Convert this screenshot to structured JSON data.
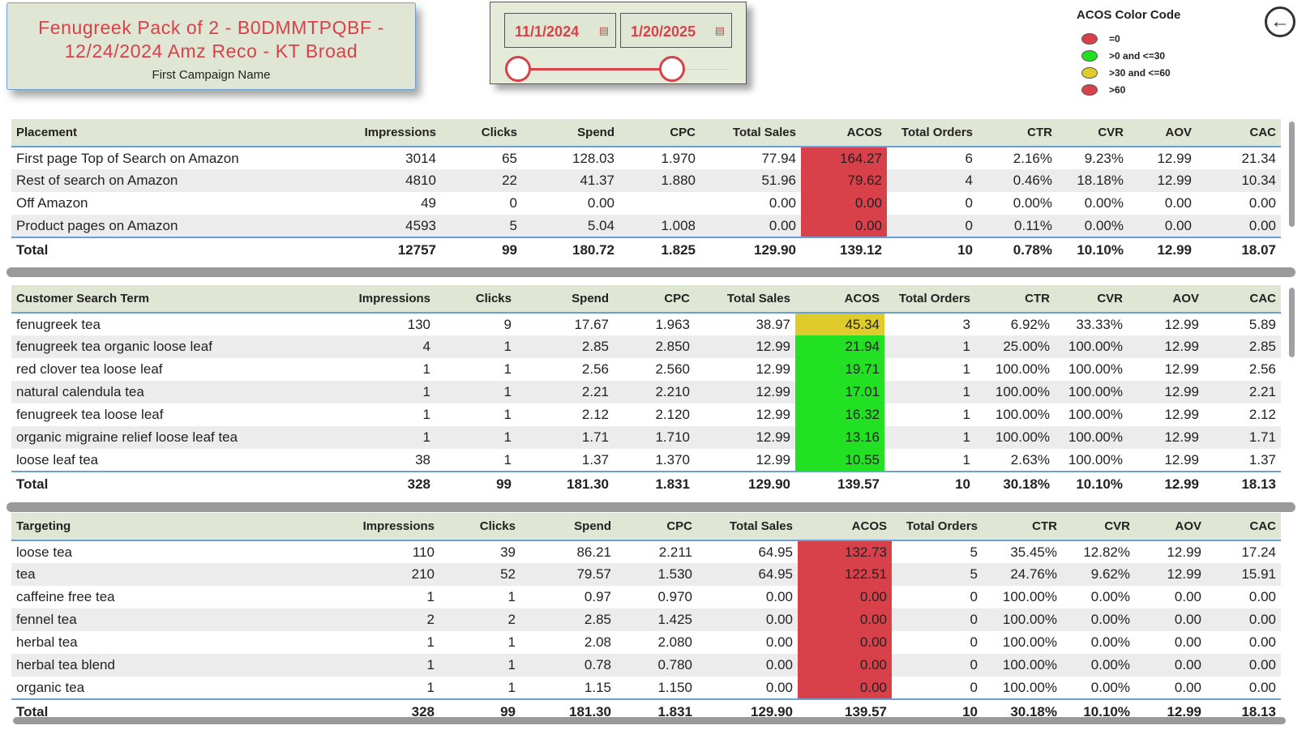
{
  "title": {
    "line1": "Fenugreek Pack of 2 - B0DMMTPQBF -",
    "line2": "12/24/2024 Amz Reco - KT Broad",
    "subtitle": "First Campaign Name"
  },
  "date_range": {
    "start": "11/1/2024",
    "end": "1/20/2025",
    "calendar_icon": "calendar-icon"
  },
  "legend": {
    "title": "ACOS Color Code",
    "items": [
      {
        "label": "=0",
        "color": "#d9414a"
      },
      {
        "label": ">0 and <=30",
        "color": "#22e022"
      },
      {
        "label": ">30 and <=60",
        "color": "#e0cb2c"
      },
      {
        "label": ">60",
        "color": "#d9414a"
      }
    ]
  },
  "back_icon": "←",
  "colors": {
    "red": "#d9414a",
    "green": "#22e022",
    "yellow": "#e0cb2c",
    "header_bg": "#dfe6d3",
    "accent_blue": "#6aa0d6"
  },
  "columns": [
    "Impressions",
    "Clicks",
    "Spend",
    "CPC",
    "Total Sales",
    "ACOS",
    "Total Orders",
    "CTR",
    "CVR",
    "AOV",
    "CAC"
  ],
  "placement": {
    "header": "Placement",
    "rows": [
      {
        "name": "First page Top of Search on Amazon",
        "cells": [
          "3014",
          "65",
          "128.03",
          "1.970",
          "77.94",
          "164.27",
          "6",
          "2.16%",
          "9.23%",
          "12.99",
          "21.34"
        ],
        "acos_color": "red"
      },
      {
        "name": "Rest of search on Amazon",
        "cells": [
          "4810",
          "22",
          "41.37",
          "1.880",
          "51.96",
          "79.62",
          "4",
          "0.46%",
          "18.18%",
          "12.99",
          "10.34"
        ],
        "acos_color": "red"
      },
      {
        "name": "Off Amazon",
        "cells": [
          "49",
          "0",
          "0.00",
          "",
          "0.00",
          "0.00",
          "0",
          "0.00%",
          "0.00%",
          "0.00",
          "0.00"
        ],
        "acos_color": "red"
      },
      {
        "name": "Product pages on Amazon",
        "cells": [
          "4593",
          "5",
          "5.04",
          "1.008",
          "0.00",
          "0.00",
          "0",
          "0.11%",
          "0.00%",
          "0.00",
          "0.00"
        ],
        "acos_color": "red"
      }
    ],
    "total": {
      "name": "Total",
      "cells": [
        "12757",
        "99",
        "180.72",
        "1.825",
        "129.90",
        "139.12",
        "10",
        "0.78%",
        "10.10%",
        "12.99",
        "18.07"
      ]
    }
  },
  "search_terms": {
    "header": "Customer Search Term",
    "rows": [
      {
        "name": "fenugreek tea",
        "cells": [
          "130",
          "9",
          "17.67",
          "1.963",
          "38.97",
          "45.34",
          "3",
          "6.92%",
          "33.33%",
          "12.99",
          "5.89"
        ],
        "acos_color": "yellow"
      },
      {
        "name": "fenugreek tea organic loose leaf",
        "cells": [
          "4",
          "1",
          "2.85",
          "2.850",
          "12.99",
          "21.94",
          "1",
          "25.00%",
          "100.00%",
          "12.99",
          "2.85"
        ],
        "acos_color": "green"
      },
      {
        "name": "red clover tea loose leaf",
        "cells": [
          "1",
          "1",
          "2.56",
          "2.560",
          "12.99",
          "19.71",
          "1",
          "100.00%",
          "100.00%",
          "12.99",
          "2.56"
        ],
        "acos_color": "green"
      },
      {
        "name": "natural calendula tea",
        "cells": [
          "1",
          "1",
          "2.21",
          "2.210",
          "12.99",
          "17.01",
          "1",
          "100.00%",
          "100.00%",
          "12.99",
          "2.21"
        ],
        "acos_color": "green"
      },
      {
        "name": "fenugreek tea loose leaf",
        "cells": [
          "1",
          "1",
          "2.12",
          "2.120",
          "12.99",
          "16.32",
          "1",
          "100.00%",
          "100.00%",
          "12.99",
          "2.12"
        ],
        "acos_color": "green"
      },
      {
        "name": "organic migraine relief loose leaf tea",
        "cells": [
          "1",
          "1",
          "1.71",
          "1.710",
          "12.99",
          "13.16",
          "1",
          "100.00%",
          "100.00%",
          "12.99",
          "1.71"
        ],
        "acos_color": "green"
      },
      {
        "name": "loose leaf tea",
        "cells": [
          "38",
          "1",
          "1.37",
          "1.370",
          "12.99",
          "10.55",
          "1",
          "2.63%",
          "100.00%",
          "12.99",
          "1.37"
        ],
        "acos_color": "green"
      }
    ],
    "total": {
      "name": "Total",
      "cells": [
        "328",
        "99",
        "181.30",
        "1.831",
        "129.90",
        "139.57",
        "10",
        "30.18%",
        "10.10%",
        "12.99",
        "18.13"
      ]
    }
  },
  "targeting": {
    "header": "Targeting",
    "rows": [
      {
        "name": "loose tea",
        "cells": [
          "110",
          "39",
          "86.21",
          "2.211",
          "64.95",
          "132.73",
          "5",
          "35.45%",
          "12.82%",
          "12.99",
          "17.24"
        ],
        "acos_color": "red"
      },
      {
        "name": "tea",
        "cells": [
          "210",
          "52",
          "79.57",
          "1.530",
          "64.95",
          "122.51",
          "5",
          "24.76%",
          "9.62%",
          "12.99",
          "15.91"
        ],
        "acos_color": "red"
      },
      {
        "name": "caffeine free tea",
        "cells": [
          "1",
          "1",
          "0.97",
          "0.970",
          "0.00",
          "0.00",
          "0",
          "100.00%",
          "0.00%",
          "0.00",
          "0.00"
        ],
        "acos_color": "red"
      },
      {
        "name": "fennel tea",
        "cells": [
          "2",
          "2",
          "2.85",
          "1.425",
          "0.00",
          "0.00",
          "0",
          "100.00%",
          "0.00%",
          "0.00",
          "0.00"
        ],
        "acos_color": "red"
      },
      {
        "name": "herbal tea",
        "cells": [
          "1",
          "1",
          "2.08",
          "2.080",
          "0.00",
          "0.00",
          "0",
          "100.00%",
          "0.00%",
          "0.00",
          "0.00"
        ],
        "acos_color": "red"
      },
      {
        "name": "herbal tea blend",
        "cells": [
          "1",
          "1",
          "0.78",
          "0.780",
          "0.00",
          "0.00",
          "0",
          "100.00%",
          "0.00%",
          "0.00",
          "0.00"
        ],
        "acos_color": "red"
      },
      {
        "name": "organic tea",
        "cells": [
          "1",
          "1",
          "1.15",
          "1.150",
          "0.00",
          "0.00",
          "0",
          "100.00%",
          "0.00%",
          "0.00",
          "0.00"
        ],
        "acos_color": "red"
      }
    ],
    "total": {
      "name": "Total",
      "cells": [
        "328",
        "99",
        "181.30",
        "1.831",
        "129.90",
        "139.57",
        "10",
        "30.18%",
        "10.10%",
        "12.99",
        "18.13"
      ]
    }
  }
}
